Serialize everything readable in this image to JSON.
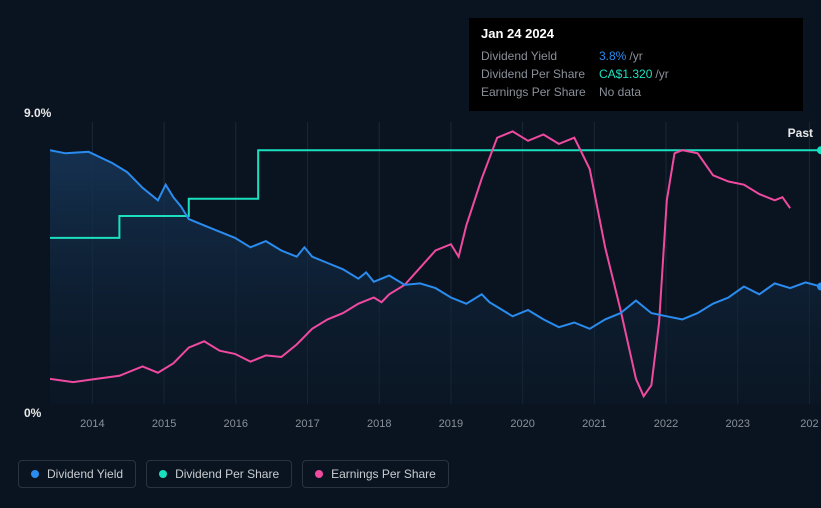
{
  "tooltip": {
    "date": "Jan 24 2024",
    "rows": [
      {
        "label": "Dividend Yield",
        "value": "3.8%",
        "unit": "/yr",
        "color": "#2a8cef"
      },
      {
        "label": "Dividend Per Share",
        "value": "CA$1.320",
        "unit": "/yr",
        "color": "#1be0c0"
      },
      {
        "label": "Earnings Per Share",
        "value": "No data",
        "unit": "",
        "color": "#8a9099"
      }
    ]
  },
  "chart": {
    "y_max_label": "9.0%",
    "y_min_label": "0%",
    "past_label": "Past",
    "background_color": "#0a1420",
    "grid_color": "#1a2836",
    "area_fill_top": "#163456",
    "area_fill_bottom": "#0c1c2e",
    "x_ticks": [
      "2014",
      "2015",
      "2016",
      "2017",
      "2018",
      "2019",
      "2020",
      "2021",
      "2022",
      "2023",
      "202"
    ],
    "x_tick_positions_pct": [
      5.5,
      14.8,
      24.1,
      33.4,
      42.7,
      52.0,
      61.3,
      70.6,
      79.9,
      89.2,
      98.5
    ],
    "series": {
      "dividend_yield": {
        "color": "#2a8cef",
        "stroke_width": 2,
        "legend": "Dividend Yield",
        "points": [
          [
            0,
            8.1
          ],
          [
            2,
            8.0
          ],
          [
            5,
            8.05
          ],
          [
            8,
            7.7
          ],
          [
            10,
            7.4
          ],
          [
            12,
            6.9
          ],
          [
            14,
            6.5
          ],
          [
            15,
            7.0
          ],
          [
            16,
            6.6
          ],
          [
            17,
            6.3
          ],
          [
            18,
            5.9
          ],
          [
            20,
            5.7
          ],
          [
            22,
            5.5
          ],
          [
            24,
            5.3
          ],
          [
            26,
            5.0
          ],
          [
            28,
            5.2
          ],
          [
            30,
            4.9
          ],
          [
            32,
            4.7
          ],
          [
            33,
            5.0
          ],
          [
            34,
            4.7
          ],
          [
            36,
            4.5
          ],
          [
            38,
            4.3
          ],
          [
            40,
            4.0
          ],
          [
            41,
            4.2
          ],
          [
            42,
            3.9
          ],
          [
            44,
            4.1
          ],
          [
            46,
            3.8
          ],
          [
            48,
            3.85
          ],
          [
            50,
            3.7
          ],
          [
            52,
            3.4
          ],
          [
            54,
            3.2
          ],
          [
            56,
            3.5
          ],
          [
            57,
            3.25
          ],
          [
            58,
            3.1
          ],
          [
            60,
            2.8
          ],
          [
            62,
            3.0
          ],
          [
            64,
            2.7
          ],
          [
            66,
            2.45
          ],
          [
            68,
            2.6
          ],
          [
            70,
            2.4
          ],
          [
            72,
            2.7
          ],
          [
            74,
            2.9
          ],
          [
            76,
            3.3
          ],
          [
            78,
            2.9
          ],
          [
            80,
            2.8
          ],
          [
            82,
            2.7
          ],
          [
            84,
            2.9
          ],
          [
            86,
            3.2
          ],
          [
            88,
            3.4
          ],
          [
            90,
            3.75
          ],
          [
            92,
            3.5
          ],
          [
            94,
            3.85
          ],
          [
            96,
            3.7
          ],
          [
            98,
            3.88
          ],
          [
            100,
            3.75
          ]
        ]
      },
      "dividend_per_share": {
        "color": "#1be0c0",
        "stroke_width": 2,
        "legend": "Dividend Per Share",
        "points": [
          [
            0,
            5.3
          ],
          [
            9,
            5.3
          ],
          [
            9,
            6.0
          ],
          [
            18,
            6.0
          ],
          [
            18,
            6.55
          ],
          [
            27,
            6.55
          ],
          [
            27,
            8.1
          ],
          [
            100,
            8.1
          ]
        ]
      },
      "earnings_per_share": {
        "color": "#ef4aa0",
        "stroke_width": 2,
        "legend": "Earnings Per Share",
        "points": [
          [
            0,
            0.8
          ],
          [
            3,
            0.7
          ],
          [
            6,
            0.8
          ],
          [
            9,
            0.9
          ],
          [
            12,
            1.2
          ],
          [
            14,
            1.0
          ],
          [
            16,
            1.3
          ],
          [
            18,
            1.8
          ],
          [
            20,
            2.0
          ],
          [
            22,
            1.7
          ],
          [
            24,
            1.6
          ],
          [
            26,
            1.35
          ],
          [
            28,
            1.55
          ],
          [
            30,
            1.5
          ],
          [
            32,
            1.9
          ],
          [
            34,
            2.4
          ],
          [
            36,
            2.7
          ],
          [
            38,
            2.9
          ],
          [
            40,
            3.2
          ],
          [
            42,
            3.4
          ],
          [
            43,
            3.25
          ],
          [
            44,
            3.5
          ],
          [
            46,
            3.8
          ],
          [
            48,
            4.35
          ],
          [
            50,
            4.9
          ],
          [
            52,
            5.1
          ],
          [
            53,
            4.7
          ],
          [
            54,
            5.7
          ],
          [
            56,
            7.2
          ],
          [
            58,
            8.5
          ],
          [
            60,
            8.7
          ],
          [
            62,
            8.4
          ],
          [
            64,
            8.6
          ],
          [
            66,
            8.3
          ],
          [
            68,
            8.5
          ],
          [
            70,
            7.5
          ],
          [
            72,
            5.0
          ],
          [
            74,
            3.0
          ],
          [
            76,
            0.8
          ],
          [
            77,
            0.25
          ],
          [
            78,
            0.6
          ],
          [
            79,
            2.6
          ],
          [
            80,
            6.5
          ],
          [
            81,
            8.0
          ],
          [
            82,
            8.1
          ],
          [
            84,
            8.0
          ],
          [
            86,
            7.3
          ],
          [
            88,
            7.1
          ],
          [
            90,
            7.0
          ],
          [
            92,
            6.7
          ],
          [
            94,
            6.5
          ],
          [
            95,
            6.6
          ],
          [
            96,
            6.25
          ]
        ]
      }
    }
  }
}
